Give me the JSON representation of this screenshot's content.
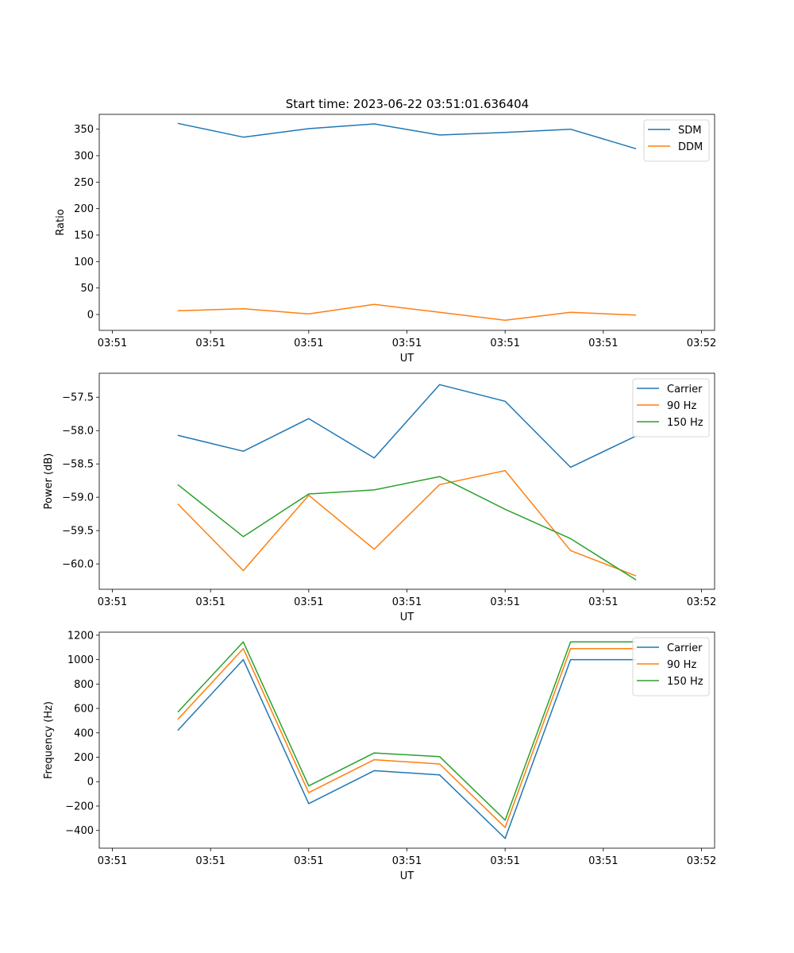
{
  "figure_title": "Start time: 2023-06-22 03:51:01.636404",
  "colors": {
    "carrier": "#1f77b4",
    "ninety": "#ff7f0e",
    "one_fifty": "#2ca02c",
    "sdm": "#1f77b4",
    "ddm": "#ff7f0e"
  },
  "chart_data": [
    {
      "type": "line",
      "title": "Start time: 2023-06-22 03:51:01.636404",
      "xlabel": "UT",
      "ylabel": "Ratio",
      "x_tick_labels": [
        "03:51",
        "03:51",
        "03:51",
        "03:51",
        "03:51",
        "03:51",
        "03:52"
      ],
      "y_ticks": [
        0,
        50,
        100,
        150,
        200,
        250,
        300,
        350
      ],
      "ylim": [
        -30,
        378
      ],
      "x": [
        1,
        2,
        3,
        4,
        5,
        6,
        7,
        8
      ],
      "xlim": [
        -0.2,
        9.2
      ],
      "x_tick_positions": [
        0,
        1.5,
        3,
        4.5,
        6,
        7.5,
        9
      ],
      "legend": "top-right",
      "series": [
        {
          "name": "SDM",
          "color": "#1f77b4",
          "values": [
            361,
            335,
            351,
            360,
            339,
            344,
            350,
            313
          ]
        },
        {
          "name": "DDM",
          "color": "#ff7f0e",
          "values": [
            7,
            11,
            1,
            19,
            4,
            -11,
            4,
            -1
          ]
        }
      ]
    },
    {
      "type": "line",
      "xlabel": "UT",
      "ylabel": "Power (dB)",
      "x_tick_labels": [
        "03:51",
        "03:51",
        "03:51",
        "03:51",
        "03:51",
        "03:51",
        "03:52"
      ],
      "y_ticks": [
        -57.5,
        -58.0,
        -58.5,
        -59.0,
        -59.5,
        -60.0
      ],
      "y_tick_labels": [
        "−57.5",
        "−58.0",
        "−58.5",
        "−59.0",
        "−59.5",
        "−60.0"
      ],
      "ylim": [
        -60.38,
        -57.14
      ],
      "x": [
        1,
        2,
        3,
        4,
        5,
        6,
        7,
        8
      ],
      "xlim": [
        -0.2,
        9.2
      ],
      "x_tick_positions": [
        0,
        1.5,
        3,
        4.5,
        6,
        7.5,
        9
      ],
      "legend": "top-right",
      "series": [
        {
          "name": "Carrier",
          "color": "#1f77b4",
          "values": [
            -58.07,
            -58.31,
            -57.82,
            -58.41,
            -57.31,
            -57.56,
            -58.55,
            -58.08
          ]
        },
        {
          "name": "90 Hz",
          "color": "#ff7f0e",
          "values": [
            -59.1,
            -60.1,
            -58.97,
            -59.78,
            -58.81,
            -58.6,
            -59.8,
            -60.18
          ]
        },
        {
          "name": "150 Hz",
          "color": "#2ca02c",
          "values": [
            -58.81,
            -59.59,
            -58.95,
            -58.89,
            -58.69,
            -59.18,
            -59.62,
            -60.24
          ]
        }
      ]
    },
    {
      "type": "line",
      "xlabel": "UT",
      "ylabel": "Frequency (Hz)",
      "x_tick_labels": [
        "03:51",
        "03:51",
        "03:51",
        "03:51",
        "03:51",
        "03:51",
        "03:52"
      ],
      "y_ticks": [
        -400,
        -200,
        0,
        200,
        400,
        600,
        800,
        1000,
        1200
      ],
      "y_tick_labels": [
        "−400",
        "−200",
        "0",
        "200",
        "400",
        "600",
        "800",
        "1000",
        "1200"
      ],
      "ylim": [
        -545,
        1225
      ],
      "x": [
        1,
        2,
        3,
        4,
        5,
        6,
        7,
        8
      ],
      "xlim": [
        -0.2,
        9.2
      ],
      "x_tick_positions": [
        0,
        1.5,
        3,
        4.5,
        6,
        7.5,
        9
      ],
      "legend": "top-right",
      "series": [
        {
          "name": "Carrier",
          "color": "#1f77b4",
          "values": [
            420,
            1000,
            -180,
            90,
            55,
            -465,
            1000,
            1000
          ]
        },
        {
          "name": "90 Hz",
          "color": "#ff7f0e",
          "values": [
            510,
            1090,
            -90,
            180,
            145,
            -375,
            1090,
            1090
          ]
        },
        {
          "name": "150 Hz",
          "color": "#2ca02c",
          "values": [
            570,
            1145,
            -35,
            235,
            205,
            -315,
            1145,
            1145
          ]
        }
      ]
    }
  ]
}
